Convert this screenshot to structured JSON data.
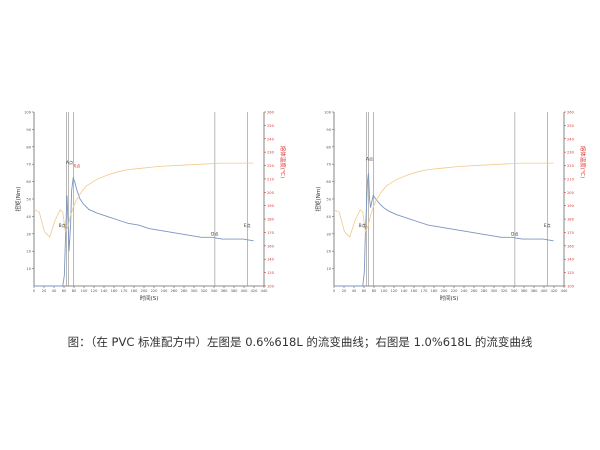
{
  "caption": "图：（在 PVC 标准配方中）左图是 0.6%618L 的流变曲线；右图是 1.0%618L 的流变曲线",
  "colors": {
    "torque": "#7b96c0",
    "temperature": "#f3c98d",
    "right_axis": "#d9332e",
    "marker_line": "#888888",
    "axis": "#666666"
  },
  "chart_data": [
    {
      "type": "line",
      "ylabel": "扭矩(Nm)",
      "y2label": "熔体温度(℃)",
      "xlabel": "时间(S)",
      "xlim": [
        0,
        440
      ],
      "ylim": [
        0,
        100
      ],
      "y2lim": [
        100,
        260
      ],
      "x_ticks": [
        "0",
        "20",
        "40",
        "60",
        "80",
        "100",
        "120",
        "140",
        "160",
        "170",
        "180",
        "200",
        "220",
        "240",
        "260",
        "280",
        "300",
        "320",
        "340",
        "360",
        "380",
        "400",
        "420",
        "440"
      ],
      "y_ticks": [
        "10",
        "20",
        "30",
        "40",
        "50",
        "60",
        "70",
        "80",
        "90",
        "100"
      ],
      "y2_ticks": [
        "100",
        "120",
        "140",
        "160",
        "170",
        "180",
        "190",
        "200",
        "210",
        "220",
        "230",
        "240",
        "250",
        "260"
      ],
      "marker_lines": [
        62,
        66,
        76,
        346,
        408
      ],
      "annotations": [
        {
          "text": "A点",
          "x": 68,
          "y": 70,
          "color": "#333333"
        },
        {
          "text": "X点",
          "x": 82,
          "y": 68,
          "color": "#d9332e"
        },
        {
          "text": "B点",
          "x": 54,
          "y": 34,
          "color": "#333333"
        },
        {
          "text": "D点",
          "x": 346,
          "y": 29,
          "color": "#333333"
        },
        {
          "text": "E点",
          "x": 408,
          "y": 34,
          "color": "#333333"
        }
      ],
      "series": [
        {
          "axis": "left",
          "color": "#7b96c0",
          "x": [
            0,
            55,
            58,
            60,
            63,
            65,
            67,
            70,
            72,
            75,
            78,
            82,
            88,
            95,
            105,
            120,
            140,
            160,
            180,
            200,
            220,
            240,
            260,
            280,
            300,
            320,
            340,
            360,
            380,
            400,
            420
          ],
          "y": [
            0,
            0,
            6,
            25,
            52,
            38,
            20,
            35,
            55,
            62,
            60,
            55,
            50,
            47,
            44,
            42,
            40,
            38,
            36,
            35,
            33,
            32,
            31,
            30,
            29,
            28,
            28,
            27,
            27,
            27,
            26
          ]
        },
        {
          "axis": "right",
          "color": "#f3c98d",
          "x": [
            0,
            10,
            20,
            30,
            40,
            50,
            55,
            60,
            65,
            70,
            75,
            80,
            90,
            100,
            120,
            140,
            160,
            180,
            200,
            240,
            280,
            320,
            360,
            400,
            420
          ],
          "y": [
            170,
            168,
            150,
            145,
            160,
            170,
            168,
            150,
            155,
            165,
            172,
            178,
            186,
            192,
            198,
            202,
            205,
            207,
            208,
            210,
            211,
            212,
            213,
            213,
            213
          ]
        }
      ]
    },
    {
      "type": "line",
      "ylabel": "扭矩(Nm)",
      "y2label": "熔体温度(℃)",
      "xlabel": "时间(S)",
      "xlim": [
        0,
        440
      ],
      "ylim": [
        0,
        100
      ],
      "y2lim": [
        100,
        260
      ],
      "x_ticks": [
        "0",
        "20",
        "40",
        "60",
        "80",
        "100",
        "120",
        "140",
        "160",
        "170",
        "180",
        "200",
        "220",
        "240",
        "260",
        "280",
        "300",
        "320",
        "340",
        "360",
        "380",
        "400",
        "420",
        "440"
      ],
      "y_ticks": [
        "10",
        "20",
        "30",
        "40",
        "50",
        "60",
        "70",
        "80",
        "90",
        "100"
      ],
      "y2_ticks": [
        "100",
        "120",
        "140",
        "160",
        "170",
        "180",
        "190",
        "200",
        "210",
        "220",
        "230",
        "240",
        "250",
        "260"
      ],
      "marker_lines": [
        62,
        66,
        76,
        346,
        408
      ],
      "annotations": [
        {
          "text": "A点",
          "x": 68,
          "y": 72,
          "color": "#333333"
        },
        {
          "text": "B点",
          "x": 54,
          "y": 34,
          "color": "#333333"
        },
        {
          "text": "D点",
          "x": 346,
          "y": 29,
          "color": "#333333"
        },
        {
          "text": "E点",
          "x": 408,
          "y": 34,
          "color": "#333333"
        }
      ],
      "series": [
        {
          "axis": "left",
          "color": "#7b96c0",
          "x": [
            0,
            55,
            58,
            60,
            62,
            64,
            66,
            68,
            70,
            72,
            75,
            80,
            88,
            95,
            105,
            120,
            140,
            160,
            180,
            200,
            220,
            240,
            260,
            280,
            300,
            320,
            340,
            360,
            380,
            400,
            420
          ],
          "y": [
            0,
            0,
            8,
            30,
            45,
            60,
            65,
            50,
            45,
            48,
            52,
            50,
            47,
            45,
            43,
            41,
            39,
            37,
            35,
            34,
            33,
            32,
            31,
            30,
            29,
            28,
            28,
            27,
            27,
            27,
            26
          ]
        },
        {
          "axis": "right",
          "color": "#f3c98d",
          "x": [
            0,
            10,
            20,
            30,
            40,
            50,
            55,
            60,
            65,
            70,
            75,
            80,
            90,
            100,
            120,
            140,
            160,
            180,
            200,
            240,
            280,
            320,
            360,
            400,
            420
          ],
          "y": [
            170,
            168,
            150,
            145,
            160,
            170,
            168,
            150,
            155,
            165,
            172,
            178,
            186,
            192,
            198,
            202,
            205,
            207,
            208,
            210,
            211,
            212,
            213,
            213,
            213
          ]
        }
      ]
    }
  ]
}
